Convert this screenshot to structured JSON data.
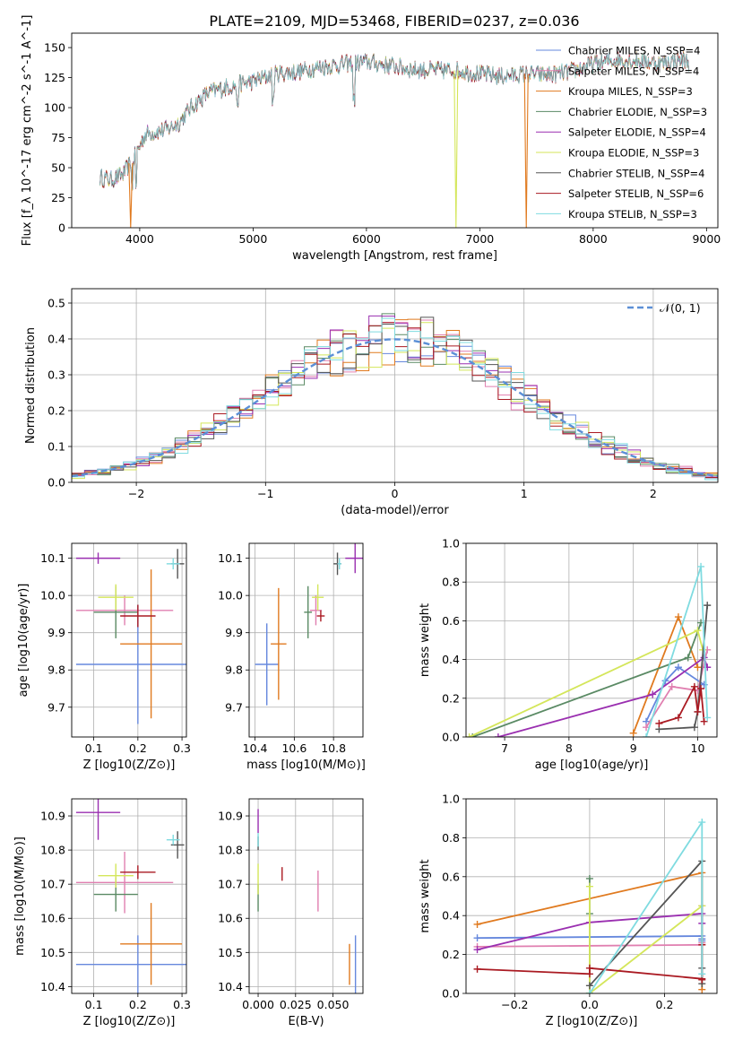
{
  "figure_title": "PLATE=2109, MJD=53468, FIBERID=0237, z=0.036",
  "colors": {
    "Chabrier MILES": "#6688dd",
    "Salpeter MILES": "#e07fb0",
    "Kroupa MILES": "#e07a1f",
    "Chabrier ELODIE": "#5a8a64",
    "Salpeter ELODIE": "#9a2fb0",
    "Kroupa ELODIE": "#d4e65a",
    "Chabrier STELIB": "#555555",
    "Salpeter STELIB": "#aa1a22",
    "Kroupa STELIB": "#7fdbe0"
  },
  "chart_data": [
    {
      "id": "spectrum",
      "type": "line",
      "title": "PLATE=2109, MJD=53468, FIBERID=0237, z=0.036",
      "xlabel": "wavelength [Angstrom, rest frame]",
      "ylabel": "Flux [f_λ 10^-17 erg cm^-2 s^-1 A^-1]",
      "xlim": [
        3400,
        9100
      ],
      "ylim": [
        0,
        162
      ],
      "xticks": [
        4000,
        5000,
        6000,
        7000,
        8000,
        9000
      ],
      "yticks": [
        0,
        25,
        50,
        75,
        100,
        125,
        150
      ],
      "grid": false,
      "legend_position": "top-right",
      "series": [
        {
          "name": "Chabrier MILES",
          "nssp": "N_SSP=4"
        },
        {
          "name": "Salpeter MILES",
          "nssp": "N_SSP=4"
        },
        {
          "name": "Kroupa MILES",
          "nssp": "N_SSP=3"
        },
        {
          "name": "Chabrier ELODIE",
          "nssp": "N_SSP=3"
        },
        {
          "name": "Salpeter ELODIE",
          "nssp": "N_SSP=4"
        },
        {
          "name": "Kroupa ELODIE",
          "nssp": "N_SSP=3"
        },
        {
          "name": "Chabrier STELIB",
          "nssp": "N_SSP=4"
        },
        {
          "name": "Salpeter STELIB",
          "nssp": "N_SSP=6"
        },
        {
          "name": "Kroupa STELIB",
          "nssp": "N_SSP=3"
        }
      ],
      "continuum": [
        [
          3650,
          42
        ],
        [
          3750,
          40
        ],
        [
          3850,
          44
        ],
        [
          3950,
          58
        ],
        [
          4050,
          78
        ],
        [
          4150,
          80
        ],
        [
          4250,
          82
        ],
        [
          4350,
          88
        ],
        [
          4450,
          100
        ],
        [
          4600,
          112
        ],
        [
          4800,
          118
        ],
        [
          5000,
          122
        ],
        [
          5200,
          128
        ],
        [
          5400,
          130
        ],
        [
          5600,
          134
        ],
        [
          5800,
          136
        ],
        [
          6000,
          138
        ],
        [
          6200,
          135
        ],
        [
          6400,
          132
        ],
        [
          6600,
          131
        ],
        [
          6800,
          131
        ],
        [
          7000,
          128
        ],
        [
          7200,
          126
        ],
        [
          7400,
          128
        ],
        [
          7600,
          127
        ],
        [
          7800,
          130
        ],
        [
          8000,
          136
        ],
        [
          8200,
          140
        ],
        [
          8400,
          139
        ],
        [
          8600,
          137
        ],
        [
          8800,
          140
        ],
        [
          8850,
          138
        ]
      ],
      "dropouts": [
        {
          "series": "Kroupa MILES",
          "wavelength": 3920
        },
        {
          "series": "Kroupa ELODIE",
          "wavelength": 6790
        },
        {
          "series": "Kroupa MILES",
          "wavelength": 7410
        }
      ]
    },
    {
      "id": "residuals",
      "type": "histogram",
      "xlabel": "(data-model)/error",
      "ylabel": "Normed distribution",
      "xlim": [
        -2.5,
        2.5
      ],
      "ylim": [
        0,
        0.54
      ],
      "xticks": [
        -2,
        -1,
        0,
        1,
        2
      ],
      "yticks": [
        0.0,
        0.1,
        0.2,
        0.3,
        0.4,
        0.5
      ],
      "grid": true,
      "legend": "𝒩(0, 1)",
      "legend_position": "top-right",
      "bin_width": 0.1,
      "series_order": [
        "Chabrier MILES",
        "Salpeter MILES",
        "Kroupa MILES",
        "Chabrier ELODIE",
        "Salpeter ELODIE",
        "Kroupa ELODIE",
        "Chabrier STELIB",
        "Salpeter STELIB",
        "Kroupa STELIB"
      ],
      "gaussian": {
        "mean": 0,
        "sigma": 1
      }
    },
    {
      "id": "age_vs_Z",
      "type": "errorbar",
      "xlabel": "Z [log10(Z/Z⊙)]",
      "ylabel": "age [log10(age/yr)]",
      "xlim": [
        0.05,
        0.31
      ],
      "ylim": [
        9.62,
        10.14
      ],
      "xticks": [
        0.1,
        0.2,
        0.3
      ],
      "yticks": [
        9.7,
        9.8,
        9.9,
        10.0,
        10.1
      ],
      "grid": true,
      "points": [
        {
          "series": "Chabrier MILES",
          "x": 0.2,
          "y": 9.815,
          "xerr": 0.14,
          "yerr": 0.16
        },
        {
          "series": "Salpeter MILES",
          "x": 0.17,
          "y": 9.96,
          "xerr": 0.11,
          "yerr": 0.04
        },
        {
          "series": "Kroupa MILES",
          "x": 0.23,
          "y": 9.87,
          "xerr": 0.07,
          "yerr": 0.2
        },
        {
          "series": "Chabrier ELODIE",
          "x": 0.15,
          "y": 9.955,
          "xerr": 0.05,
          "yerr": 0.07
        },
        {
          "series": "Salpeter ELODIE",
          "x": 0.11,
          "y": 10.1,
          "xerr": 0.05,
          "yerr": 0.015
        },
        {
          "series": "Kroupa ELODIE",
          "x": 0.15,
          "y": 9.995,
          "xerr": 0.04,
          "yerr": 0.035
        },
        {
          "series": "Chabrier STELIB",
          "x": 0.29,
          "y": 10.085,
          "xerr": 0.015,
          "yerr": 0.04
        },
        {
          "series": "Salpeter STELIB",
          "x": 0.2,
          "y": 9.945,
          "xerr": 0.04,
          "yerr": 0.03
        },
        {
          "series": "Kroupa STELIB",
          "x": 0.28,
          "y": 10.085,
          "xerr": 0.015,
          "yerr": 0.015
        }
      ]
    },
    {
      "id": "age_vs_mass",
      "type": "errorbar",
      "xlabel": "mass [log10(M/M⊙)]",
      "ylabel": "",
      "xlim": [
        10.37,
        10.95
      ],
      "ylim": [
        9.62,
        10.14
      ],
      "xticks": [
        10.4,
        10.6,
        10.8
      ],
      "yticks": [
        9.7,
        9.8,
        9.9,
        10.0,
        10.1
      ],
      "grid": true,
      "points": [
        {
          "series": "Chabrier MILES",
          "x": 10.46,
          "y": 9.815,
          "xerr": 0.06,
          "yerr": 0.11
        },
        {
          "series": "Salpeter MILES",
          "x": 10.71,
          "y": 9.96,
          "xerr": 0.03,
          "yerr": 0.04
        },
        {
          "series": "Kroupa MILES",
          "x": 10.52,
          "y": 9.87,
          "xerr": 0.04,
          "yerr": 0.15
        },
        {
          "series": "Chabrier ELODIE",
          "x": 10.67,
          "y": 9.955,
          "xerr": 0.02,
          "yerr": 0.07
        },
        {
          "series": "Salpeter ELODIE",
          "x": 10.91,
          "y": 10.1,
          "xerr": 0.05,
          "yerr": 0.04
        },
        {
          "series": "Kroupa ELODIE",
          "x": 10.72,
          "y": 9.995,
          "xerr": 0.03,
          "yerr": 0.035
        },
        {
          "series": "Chabrier STELIB",
          "x": 10.82,
          "y": 10.085,
          "xerr": 0.02,
          "yerr": 0.03
        },
        {
          "series": "Salpeter STELIB",
          "x": 10.735,
          "y": 9.945,
          "xerr": 0.02,
          "yerr": 0.015
        },
        {
          "series": "Kroupa STELIB",
          "x": 10.83,
          "y": 10.085,
          "xerr": 0.01,
          "yerr": 0.015
        }
      ]
    },
    {
      "id": "weight_vs_age",
      "type": "line",
      "xlabel": "age [log10(age/yr)]",
      "ylabel": "mass weight",
      "xlim": [
        6.4,
        10.3
      ],
      "ylim": [
        0,
        1
      ],
      "xticks": [
        7,
        8,
        9,
        10
      ],
      "yticks": [
        0.0,
        0.2,
        0.4,
        0.6,
        0.8,
        1.0
      ],
      "grid": true,
      "series": [
        {
          "name": "Chabrier MILES",
          "x": [
            9.2,
            9.5,
            9.7,
            10.1
          ],
          "y": [
            0.08,
            0.29,
            0.36,
            0.27
          ]
        },
        {
          "name": "Salpeter MILES",
          "x": [
            9.2,
            9.6,
            10.0,
            10.15
          ],
          "y": [
            0.05,
            0.26,
            0.24,
            0.45
          ]
        },
        {
          "name": "Kroupa MILES",
          "x": [
            9.0,
            9.7,
            10.0
          ],
          "y": [
            0.02,
            0.62,
            0.36
          ]
        },
        {
          "name": "Chabrier ELODIE",
          "x": [
            6.5,
            9.85,
            10.05
          ],
          "y": [
            0.0,
            0.41,
            0.59
          ]
        },
        {
          "name": "Salpeter ELODIE",
          "x": [
            6.9,
            9.3,
            10.1,
            10.15
          ],
          "y": [
            0.0,
            0.22,
            0.41,
            0.36
          ]
        },
        {
          "name": "Kroupa ELODIE",
          "x": [
            6.45,
            10.0,
            10.08
          ],
          "y": [
            0.0,
            0.55,
            0.45
          ]
        },
        {
          "name": "Chabrier STELIB",
          "x": [
            9.4,
            9.95,
            10.0,
            10.15
          ],
          "y": [
            0.04,
            0.05,
            0.13,
            0.68
          ]
        },
        {
          "name": "Salpeter STELIB",
          "x": [
            9.4,
            9.7,
            9.95,
            10.0,
            10.05,
            10.1
          ],
          "y": [
            0.07,
            0.1,
            0.26,
            0.13,
            0.25,
            0.08
          ]
        },
        {
          "name": "Kroupa STELIB",
          "x": [
            9.2,
            10.05,
            10.15
          ],
          "y": [
            0.0,
            0.88,
            0.1
          ]
        }
      ]
    },
    {
      "id": "mass_vs_Z",
      "type": "errorbar",
      "xlabel": "Z [log10(Z/Z⊙)]",
      "ylabel": "mass [log10(M/M⊙)]",
      "xlim": [
        0.05,
        0.31
      ],
      "ylim": [
        10.38,
        10.95
      ],
      "xticks": [
        0.1,
        0.2,
        0.3
      ],
      "yticks": [
        10.4,
        10.5,
        10.6,
        10.7,
        10.8,
        10.9
      ],
      "grid": true,
      "points": [
        {
          "series": "Chabrier MILES",
          "x": 0.2,
          "y": 10.465,
          "xerr": 0.14,
          "yerr": 0.085
        },
        {
          "series": "Salpeter MILES",
          "x": 0.17,
          "y": 10.705,
          "xerr": 0.11,
          "yerr": 0.09
        },
        {
          "series": "Kroupa MILES",
          "x": 0.23,
          "y": 10.525,
          "xerr": 0.07,
          "yerr": 0.12
        },
        {
          "series": "Chabrier ELODIE",
          "x": 0.15,
          "y": 10.67,
          "xerr": 0.05,
          "yerr": 0.05
        },
        {
          "series": "Salpeter ELODIE",
          "x": 0.11,
          "y": 10.91,
          "xerr": 0.05,
          "yerr": 0.08
        },
        {
          "series": "Kroupa ELODIE",
          "x": 0.15,
          "y": 10.725,
          "xerr": 0.04,
          "yerr": 0.035
        },
        {
          "series": "Chabrier STELIB",
          "x": 0.29,
          "y": 10.815,
          "xerr": 0.015,
          "yerr": 0.04
        },
        {
          "series": "Salpeter STELIB",
          "x": 0.2,
          "y": 10.735,
          "xerr": 0.04,
          "yerr": 0.02
        },
        {
          "series": "Kroupa STELIB",
          "x": 0.28,
          "y": 10.83,
          "xerr": 0.015,
          "yerr": 0.015
        }
      ]
    },
    {
      "id": "mass_vs_ebv",
      "type": "errorbar",
      "xlabel": "E(B-V)",
      "ylabel": "",
      "xlim": [
        -0.006,
        0.07
      ],
      "ylim": [
        10.38,
        10.95
      ],
      "xticks": [
        0.0,
        0.025,
        0.05
      ],
      "xticklabels": [
        "0.000",
        "0.025",
        "0.050"
      ],
      "yticks": [
        10.4,
        10.5,
        10.6,
        10.7,
        10.8,
        10.9
      ],
      "grid": true,
      "points": [
        {
          "series": "Chabrier MILES",
          "x": 0.065,
          "y": 10.465,
          "yerr": 0.085
        },
        {
          "series": "Salpeter MILES",
          "x": 0.04,
          "y": 10.68,
          "yerr": 0.06
        },
        {
          "series": "Kroupa MILES",
          "x": 0.061,
          "y": 10.465,
          "yerr": 0.06
        },
        {
          "series": "Chabrier ELODIE",
          "x": 0.0,
          "y": 10.66,
          "yerr": 0.04
        },
        {
          "series": "Salpeter ELODIE",
          "x": 0.0,
          "y": 10.885,
          "yerr": 0.035
        },
        {
          "series": "Kroupa ELODIE",
          "x": 0.0,
          "y": 10.715,
          "yerr": 0.045
        },
        {
          "series": "Chabrier STELIB",
          "x": 0.0,
          "y": 10.82,
          "yerr": 0.02
        },
        {
          "series": "Salpeter STELIB",
          "x": 0.016,
          "y": 10.73,
          "yerr": 0.02
        },
        {
          "series": "Kroupa STELIB",
          "x": 0.0,
          "y": 10.83,
          "yerr": 0.02
        }
      ]
    },
    {
      "id": "weight_vs_Z",
      "type": "line",
      "xlabel": "Z [log10(Z/Z⊙)]",
      "ylabel": "mass weight",
      "xlim": [
        -0.33,
        0.34
      ],
      "ylim": [
        0,
        1
      ],
      "xticks": [
        -0.2,
        0.0,
        0.2
      ],
      "yticks": [
        0.0,
        0.2,
        0.4,
        0.6,
        0.8,
        1.0
      ],
      "grid": true,
      "series": [
        {
          "name": "Chabrier MILES",
          "x": [
            -0.3,
            0.3,
            0.3,
            0.3
          ],
          "y": [
            0.285,
            0.295,
            0.27,
            0.28
          ]
        },
        {
          "name": "Salpeter MILES",
          "x": [
            -0.3,
            0.3,
            0.3,
            0.3
          ],
          "y": [
            0.24,
            0.25,
            0.45,
            0.26
          ]
        },
        {
          "name": "Kroupa MILES",
          "x": [
            -0.3,
            0.3,
            0.3
          ],
          "y": [
            0.355,
            0.62,
            0.02
          ]
        },
        {
          "name": "Chabrier ELODIE",
          "x": [
            0.0,
            0.0,
            0.0
          ],
          "y": [
            0.59,
            0.41,
            0.0
          ]
        },
        {
          "name": "Salpeter ELODIE",
          "x": [
            -0.3,
            0.0,
            0.3,
            0.3
          ],
          "y": [
            0.225,
            0.365,
            0.41,
            0.36
          ]
        },
        {
          "name": "Kroupa ELODIE",
          "x": [
            0.0,
            0.0,
            0.3
          ],
          "y": [
            0.55,
            0.0,
            0.45
          ]
        },
        {
          "name": "Chabrier STELIB",
          "x": [
            0.0,
            0.3,
            0.3,
            0.3
          ],
          "y": [
            0.04,
            0.68,
            0.13,
            0.05
          ]
        },
        {
          "name": "Salpeter STELIB",
          "x": [
            -0.3,
            0.0,
            0.0,
            0.3,
            0.3,
            0.3
          ],
          "y": [
            0.125,
            0.1,
            0.13,
            0.075,
            0.25,
            0.07
          ]
        },
        {
          "name": "Kroupa STELIB",
          "x": [
            0.0,
            0.3,
            0.3
          ],
          "y": [
            0.0,
            0.88,
            0.1
          ]
        }
      ]
    }
  ]
}
